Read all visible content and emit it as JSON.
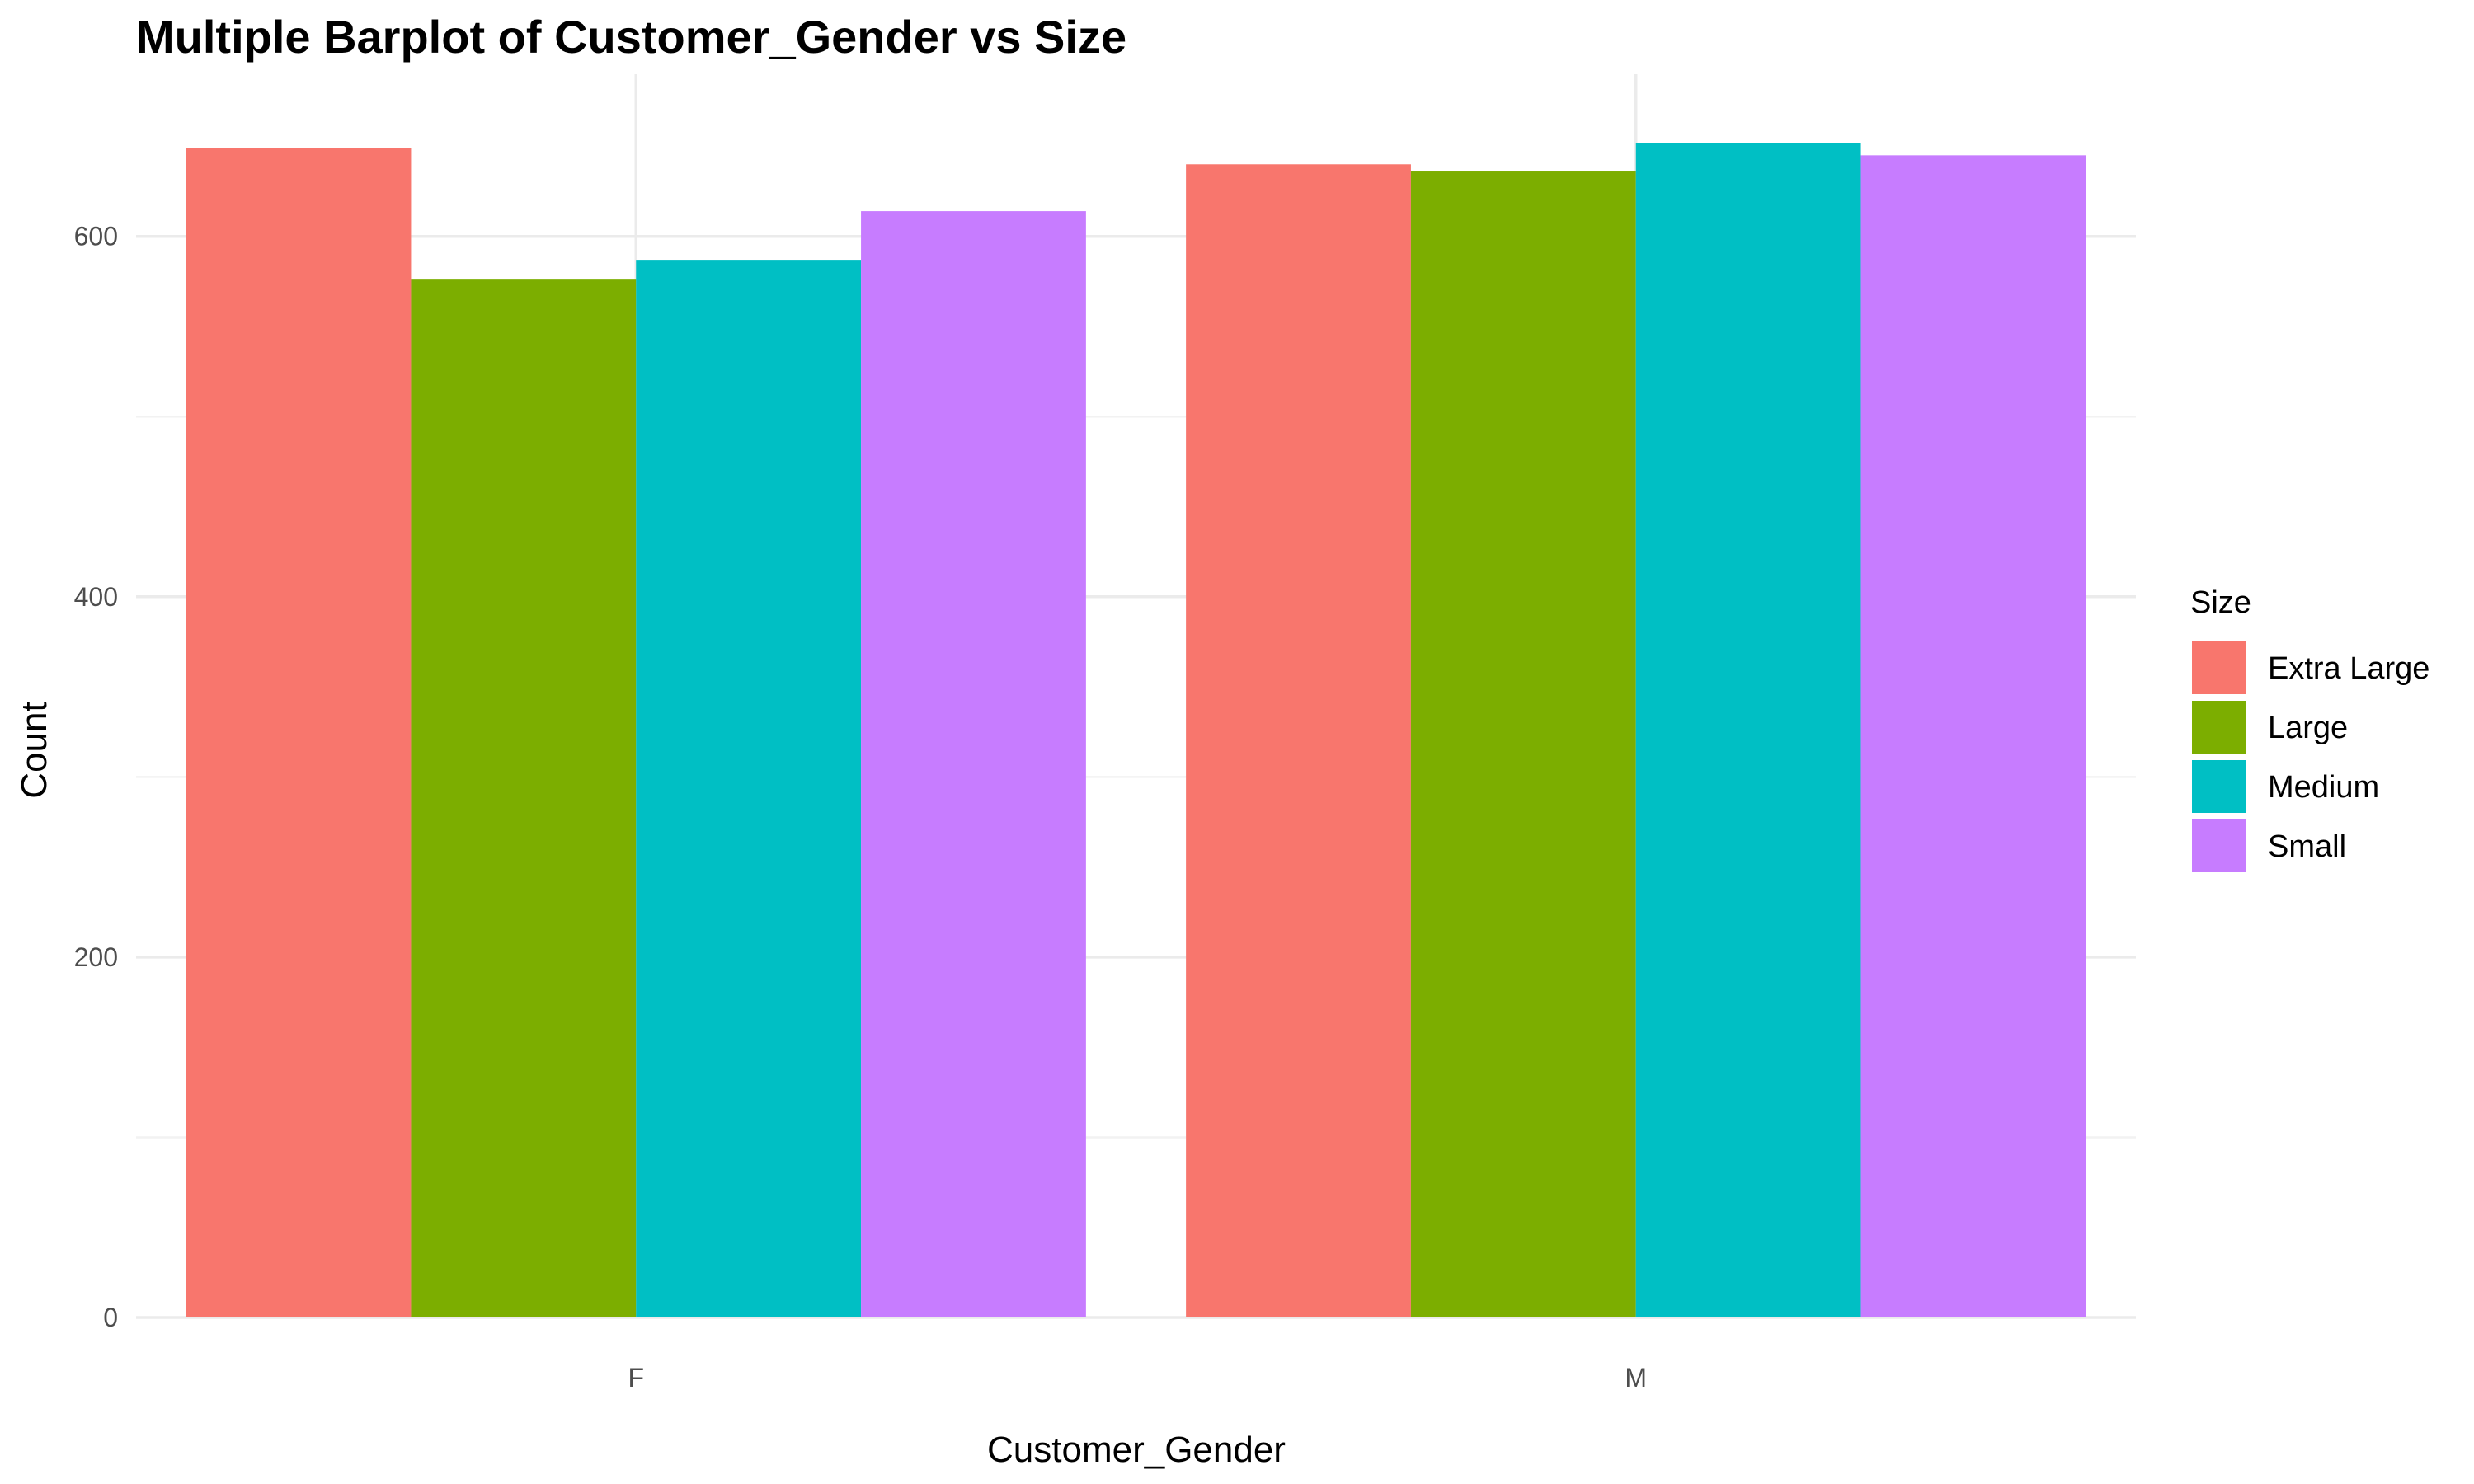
{
  "chart_data": {
    "type": "bar",
    "title": "Multiple Barplot of Customer_Gender vs Size",
    "xlabel": "Customer_Gender",
    "ylabel": "Count",
    "categories": [
      "F",
      "M"
    ],
    "ylim": [
      0,
      690
    ],
    "y_ticks": [
      0,
      200,
      400,
      600
    ],
    "grid": true,
    "legend": {
      "title": "Size",
      "placement": "right"
    },
    "series": [
      {
        "name": "Extra Large",
        "color": "#F8766D",
        "values": [
          649,
          640
        ]
      },
      {
        "name": "Large",
        "color": "#7CAE00",
        "values": [
          576,
          636
        ]
      },
      {
        "name": "Medium",
        "color": "#00BFC4",
        "values": [
          587,
          652
        ]
      },
      {
        "name": "Small",
        "color": "#C77CFF",
        "values": [
          614,
          645
        ]
      }
    ]
  }
}
